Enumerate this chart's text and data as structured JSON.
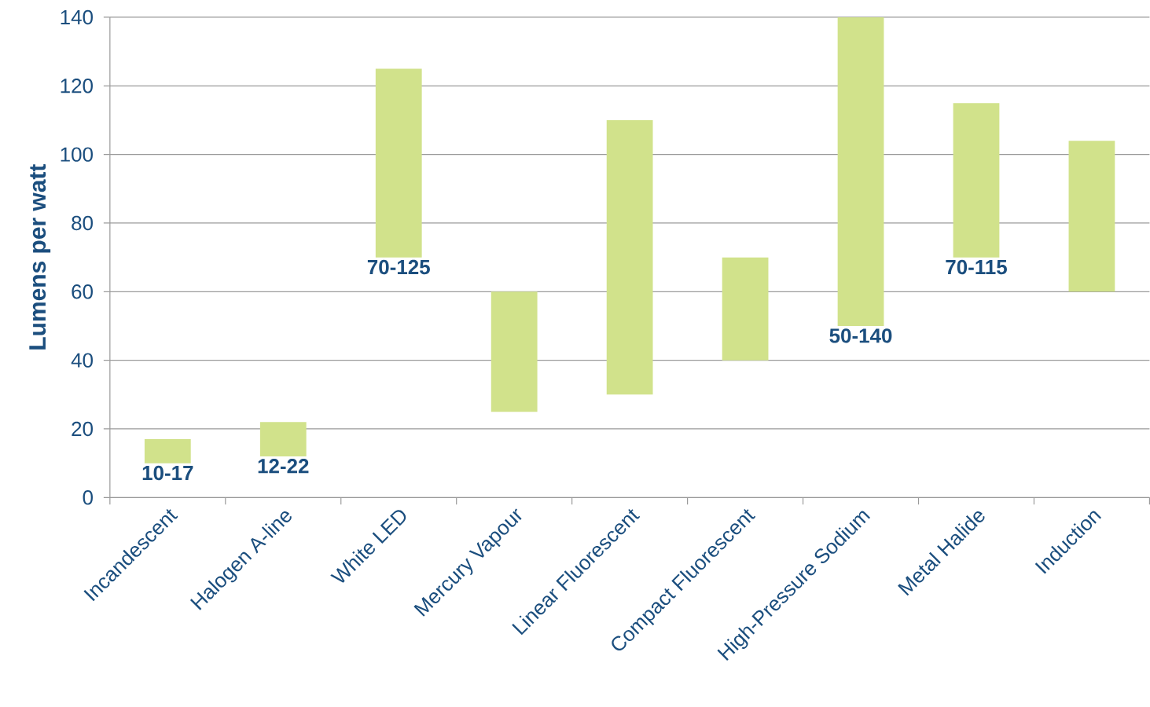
{
  "chart_data": {
    "type": "bar",
    "ylabel": "Lumens per watt",
    "categories": [
      "Incandescent",
      "Halogen A-line",
      "White LED",
      "Mercury Vapour",
      "Linear Fluorescent",
      "Compact Fluorescent",
      "High-Pressure Sodium",
      "Metal Halide",
      "Induction"
    ],
    "base": [
      10,
      12,
      70,
      25,
      30,
      40,
      50,
      70,
      60
    ],
    "values": [
      7,
      10,
      55,
      35,
      80,
      30,
      90,
      45,
      44
    ],
    "value_labels": [
      "10-17",
      "12-22",
      "70-125",
      null,
      null,
      null,
      "50-140",
      "70-115",
      null
    ],
    "color": "#d1e28b",
    "ylim": [
      0,
      140
    ],
    "yticks": [
      0,
      20,
      40,
      60,
      80,
      100,
      120,
      140
    ],
    "grid": "y"
  }
}
